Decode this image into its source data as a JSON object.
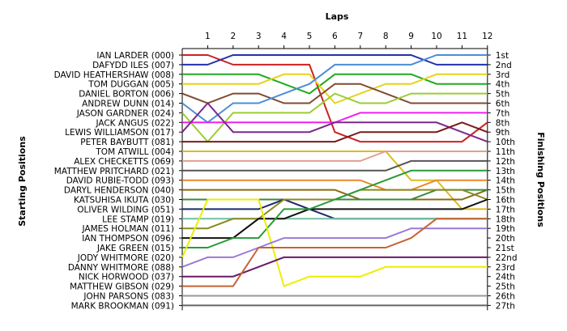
{
  "chart_data": {
    "type": "line",
    "title": "Laps",
    "ylabel_left": "Starting Positions",
    "ylabel_right": "Finishing Positions",
    "laps": [
      "1",
      "2",
      "3",
      "4",
      "5",
      "6",
      "7",
      "8",
      "9",
      "10",
      "11",
      "12"
    ],
    "finishing_positions": [
      "1st",
      "2nd",
      "3rd",
      "4th",
      "5th",
      "6th",
      "7th",
      "8th",
      "9th",
      "10th",
      "11th",
      "12th",
      "13th",
      "14th",
      "15th",
      "16th",
      "17th",
      "18th",
      "19th",
      "20th",
      "21st",
      "22nd",
      "23rd",
      "24th",
      "25th",
      "26th",
      "27th"
    ],
    "drivers": [
      {
        "name": "IAN LARDER (000)",
        "color": "#cc2222"
      },
      {
        "name": "DAFYDD ILES (007)",
        "color": "#2233aa"
      },
      {
        "name": "DAVID HEATHERSHAW (008)",
        "color": "#22aa22"
      },
      {
        "name": "TOM DUGGAN (005)",
        "color": "#e8d21e"
      },
      {
        "name": "DANIEL BORTON (006)",
        "color": "#804a2e"
      },
      {
        "name": "ANDREW DUNN (014)",
        "color": "#4a8fd6"
      },
      {
        "name": "JASON GARDNER (024)",
        "color": "#9acd32"
      },
      {
        "name": "JACK ANGUS (022)",
        "color": "#ee22ee"
      },
      {
        "name": "LEWIS WILLIAMSON (017)",
        "color": "#7a2a8a"
      },
      {
        "name": "PETER BAYBUTT (081)",
        "color": "#7a1a1a"
      },
      {
        "name": "TOM ATWILL (004)",
        "color": "#ddbb22"
      },
      {
        "name": "ALEX CHECKETTS (069)",
        "color": "#e0a090"
      },
      {
        "name": "MATTHEW PRITCHARD (021)",
        "color": "#555555"
      },
      {
        "name": "DAVID RUBIE-TODD (093)",
        "color": "#e88a2a"
      },
      {
        "name": "DARYL HENDERSON (040)",
        "color": "#8a6a10"
      },
      {
        "name": "KATSUHISA IKUTA (030)",
        "color": "#3a8a3a"
      },
      {
        "name": "OLIVER WILDING (051)",
        "color": "#1a2a6a"
      },
      {
        "name": "LEE STAMP (019)",
        "color": "#70c0a0"
      },
      {
        "name": "JAMES HOLMAN (011)",
        "color": "#8a8a22"
      },
      {
        "name": "IAN THOMPSON (096)",
        "color": "#111111"
      },
      {
        "name": "JAKE GREEN (015)",
        "color": "#2a9a3a"
      },
      {
        "name": "JODY WHITMORE (020)",
        "color": "#eeee00"
      },
      {
        "name": "DANNY WHITMORE (088)",
        "color": "#9a7ad8"
      },
      {
        "name": "NICK HORWOOD (037)",
        "color": "#6a1a6a"
      },
      {
        "name": "MATTHEW GIBSON (029)",
        "color": "#c86432"
      },
      {
        "name": "JOHN PARSONS (083)",
        "color": "#999999"
      },
      {
        "name": "MARK BROOKMAN (091)",
        "color": "#666666"
      }
    ],
    "series": [
      {
        "driver": "IAN LARDER (000)",
        "positions": [
          1,
          1,
          2,
          2,
          2,
          2,
          9,
          10,
          10,
          10,
          10,
          10,
          8
        ]
      },
      {
        "driver": "DAFYDD ILES (007)",
        "positions": [
          2,
          2,
          1,
          1,
          1,
          1,
          1,
          1,
          1,
          1,
          2,
          2,
          2
        ]
      },
      {
        "driver": "DAVID HEATHERSHAW (008)",
        "positions": [
          3,
          3,
          3,
          3,
          4,
          5,
          3,
          3,
          3,
          3,
          4,
          4,
          4
        ]
      },
      {
        "driver": "TOM DUGGAN (005)",
        "positions": [
          4,
          4,
          4,
          4,
          3,
          3,
          6,
          5,
          4,
          4,
          3,
          3,
          3
        ]
      },
      {
        "driver": "DANIEL BORTON (006)",
        "positions": [
          5,
          6,
          5,
          5,
          6,
          6,
          4,
          4,
          5,
          6,
          6,
          6,
          6
        ]
      },
      {
        "driver": "ANDREW DUNN (014)",
        "positions": [
          6,
          8,
          6,
          6,
          5,
          4,
          2,
          2,
          2,
          2,
          1,
          1,
          1
        ]
      },
      {
        "driver": "JASON GARDNER (024)",
        "positions": [
          7,
          10,
          7,
          7,
          7,
          7,
          5,
          6,
          6,
          5,
          5,
          5,
          5
        ]
      },
      {
        "driver": "JACK ANGUS (022)",
        "positions": [
          8,
          8,
          8,
          8,
          8,
          8,
          8,
          7,
          7,
          7,
          7,
          7,
          7
        ]
      },
      {
        "driver": "LEWIS WILLIAMSON (017)",
        "positions": [
          9,
          6,
          9,
          9,
          9,
          9,
          8,
          8,
          8,
          8,
          8,
          9,
          10
        ]
      },
      {
        "driver": "PETER BAYBUTT (081)",
        "positions": [
          10,
          10,
          10,
          10,
          10,
          10,
          10,
          9,
          9,
          9,
          9,
          8,
          9
        ]
      },
      {
        "driver": "TOM ATWILL (004)",
        "positions": [
          11,
          11,
          11,
          11,
          11,
          11,
          11,
          11,
          11,
          14,
          14,
          17,
          17
        ]
      },
      {
        "driver": "ALEX CHECKETTS (069)",
        "positions": [
          12,
          12,
          12,
          12,
          12,
          12,
          12,
          12,
          11,
          11,
          11,
          11,
          11
        ]
      },
      {
        "driver": "MATTHEW PRITCHARD (021)",
        "positions": [
          13,
          13,
          13,
          13,
          13,
          13,
          13,
          13,
          13,
          12,
          12,
          12,
          12
        ]
      },
      {
        "driver": "DAVID RUBIE-TODD (093)",
        "positions": [
          14,
          14,
          14,
          14,
          14,
          14,
          14,
          14,
          15,
          15,
          14,
          14,
          14
        ]
      },
      {
        "driver": "DARYL HENDERSON (040)",
        "positions": [
          15,
          15,
          15,
          15,
          15,
          15,
          15,
          16,
          16,
          16,
          16,
          16,
          15
        ]
      },
      {
        "driver": "KATSUHISA IKUTA (030)",
        "positions": [
          16,
          16,
          16,
          16,
          16,
          16,
          16,
          16,
          16,
          16,
          15,
          15,
          15
        ]
      },
      {
        "driver": "OLIVER WILDING (051)",
        "positions": [
          17,
          17,
          17,
          17,
          16,
          17,
          18,
          18,
          18,
          18,
          18,
          18,
          18
        ]
      },
      {
        "driver": "LEE STAMP (019)",
        "positions": [
          18,
          18,
          18,
          18,
          18,
          18,
          18,
          18,
          18,
          18,
          18,
          18,
          18
        ]
      },
      {
        "driver": "JAMES HOLMAN (011)",
        "positions": [
          19,
          19,
          18,
          18,
          16,
          16,
          16,
          15,
          15,
          15,
          15,
          15,
          16
        ]
      },
      {
        "driver": "IAN THOMPSON (096)",
        "positions": [
          20,
          20,
          20,
          18,
          18,
          17,
          17,
          17,
          17,
          17,
          17,
          17,
          16
        ]
      },
      {
        "driver": "JAKE GREEN (015)",
        "positions": [
          21,
          21,
          20,
          20,
          17,
          17,
          16,
          15,
          14,
          13,
          13,
          13,
          13
        ]
      },
      {
        "driver": "JODY WHITMORE (020)",
        "positions": [
          22,
          16,
          16,
          16,
          25,
          24,
          24,
          24,
          23,
          23,
          23,
          23,
          23
        ]
      },
      {
        "driver": "DANNY WHITMORE (088)",
        "positions": [
          23,
          22,
          22,
          21,
          20,
          20,
          20,
          20,
          20,
          19,
          19,
          19,
          19
        ]
      },
      {
        "driver": "NICK HORWOOD (037)",
        "positions": [
          24,
          24,
          24,
          23,
          22,
          22,
          22,
          22,
          22,
          22,
          22,
          22,
          22
        ]
      },
      {
        "driver": "MATTHEW GIBSON (029)",
        "positions": [
          25,
          25,
          25,
          21,
          21,
          21,
          21,
          21,
          21,
          20,
          18,
          18,
          18
        ]
      },
      {
        "driver": "JOHN PARSONS (083)",
        "positions": [
          26,
          26,
          26,
          26,
          26,
          26,
          26,
          26,
          26,
          26,
          26,
          26,
          26
        ]
      },
      {
        "driver": "MARK BROOKMAN (091)",
        "positions": [
          27,
          27,
          27,
          27,
          27,
          27,
          27,
          27,
          27,
          27,
          27,
          27,
          27
        ]
      }
    ]
  }
}
